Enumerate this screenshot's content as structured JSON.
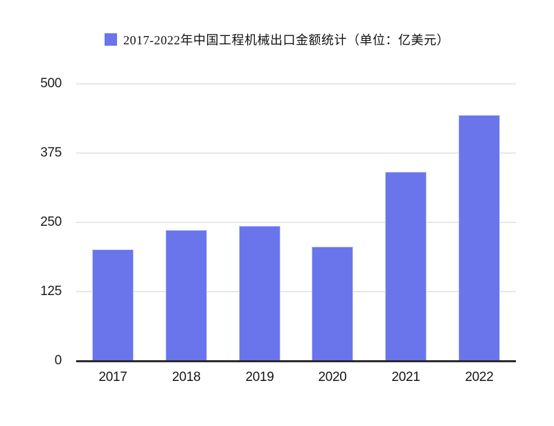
{
  "legend": {
    "label": "2017-2022年中国工程机械出口金额统计（单位：亿美元）",
    "swatch_color": "#6a75ec"
  },
  "chart_data": {
    "type": "bar",
    "title": "2017-2022年中国工程机械出口金额统计（单位：亿美元）",
    "categories": [
      "2017",
      "2018",
      "2019",
      "2020",
      "2021",
      "2022"
    ],
    "values": [
      200,
      235,
      242,
      205,
      340,
      443
    ],
    "xlabel": "",
    "ylabel": "",
    "ylim": [
      0,
      500
    ],
    "yticks": [
      0,
      125,
      250,
      375,
      500
    ],
    "bar_color": "#6a75ec",
    "bar_border_color": "#ccd2f7",
    "gridline_color": "#e7e7e7",
    "axis_line_color": "#2b2b2b",
    "grid": true,
    "legend_position": "top-center"
  }
}
